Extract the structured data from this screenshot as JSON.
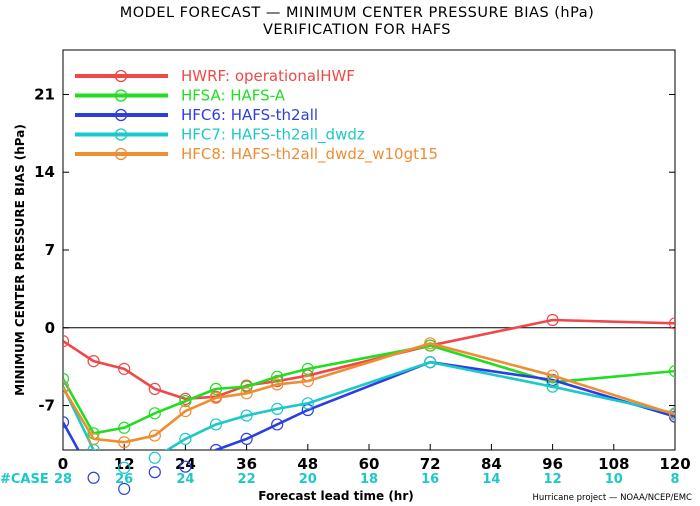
{
  "chart_data": {
    "type": "line",
    "title": "MODEL FORECAST — MINIMUM CENTER PRESSURE BIAS (hPa)",
    "subtitle": "VERIFICATION FOR HAFS",
    "xlabel": "Forecast lead time (hr)",
    "ylabel": "MINIMUM CENTER PRESSURE BIAS (hPa)",
    "credit": "Hurricane project — NOAA/NCEP/EMC",
    "xlim": [
      0,
      120
    ],
    "ylim": [
      -11,
      25
    ],
    "x_ticks": [
      0,
      12,
      24,
      36,
      48,
      60,
      72,
      84,
      96,
      108,
      120
    ],
    "y_ticks": [
      -7,
      0,
      7,
      14,
      21
    ],
    "x": [
      0,
      6,
      12,
      18,
      24,
      30,
      36,
      42,
      48,
      72,
      96,
      120
    ],
    "series": [
      {
        "name": "HWRF: operationalHWF",
        "color": "#f04848",
        "values": [
          -1.2,
          -3.0,
          -3.7,
          -5.5,
          -6.4,
          -6.2,
          -5.2,
          -4.8,
          -4.3,
          -1.6,
          0.7,
          0.4
        ]
      },
      {
        "name": "HFSA: HAFS-A",
        "color": "#22dd22",
        "values": [
          -4.6,
          -9.5,
          -9.0,
          -7.7,
          -6.6,
          -5.5,
          -5.3,
          -4.4,
          -3.7,
          -1.6,
          -4.9,
          -3.9
        ]
      },
      {
        "name": "HFC6: HAFS-th2all",
        "color": "#2c3ee0",
        "values": [
          -8.5,
          -13.5,
          -14.5,
          -13.0,
          -12.5,
          -11.0,
          -10.0,
          -8.7,
          -7.4,
          -3.1,
          -4.7,
          -8.0
        ]
      },
      {
        "name": "HFC7: HAFS-th2all_dwdz",
        "color": "#1cc8c8",
        "values": [
          -5.3,
          -11.0,
          -12.6,
          -11.7,
          -10.0,
          -8.7,
          -7.9,
          -7.3,
          -6.8,
          -3.1,
          -5.3,
          -7.7
        ]
      },
      {
        "name": "HFC8: HAFS-th2all_dwdz_w10gt15",
        "color": "#f08c32",
        "values": [
          -5.4,
          -10.0,
          -10.3,
          -9.7,
          -7.5,
          -6.3,
          -5.9,
          -5.1,
          -4.8,
          -1.4,
          -4.3,
          -7.8
        ]
      }
    ],
    "case_label": "#CASE",
    "case_counts": [
      {
        "x": 0,
        "count": 28
      },
      {
        "x": 12,
        "count": 26
      },
      {
        "x": 24,
        "count": 24
      },
      {
        "x": 36,
        "count": 22
      },
      {
        "x": 48,
        "count": 20
      },
      {
        "x": 60,
        "count": 18
      },
      {
        "x": 72,
        "count": 16
      },
      {
        "x": 84,
        "count": 14
      },
      {
        "x": 96,
        "count": 12
      },
      {
        "x": 108,
        "count": 10
      },
      {
        "x": 120,
        "count": 8
      }
    ],
    "legend_position": "top-left",
    "zero_line": true
  }
}
